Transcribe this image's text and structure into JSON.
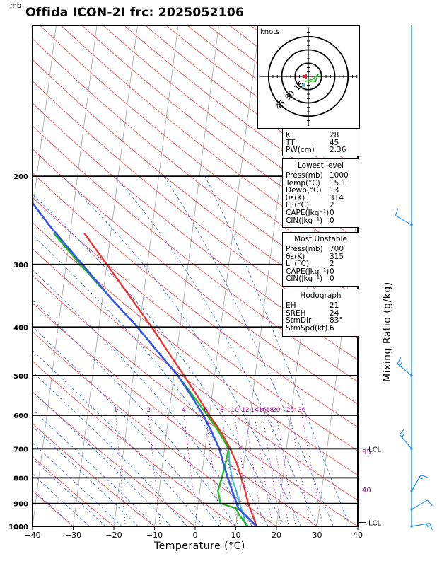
{
  "title": "Offida ICON-2I frc: 2025052106",
  "pressure_unit": "mb",
  "chart_data": {
    "type": "skew-t",
    "xlabel": "Temperature (°C)",
    "ylabel_right": "Mixing Ratio (g/kg)",
    "x_range": [
      -40,
      40
    ],
    "x_ticks": [
      "−40",
      "−30",
      "−20",
      "−10",
      "0",
      "10",
      "20",
      "30",
      "40"
    ],
    "pressure_range": [
      100,
      1000
    ],
    "pressure_ticks": [
      "200",
      "300",
      "400",
      "500",
      "600",
      "700",
      "800",
      "900",
      "1000"
    ],
    "mixing_ratio_labels": [
      "1",
      "2",
      "4",
      "6",
      "8",
      "10",
      "12",
      "14",
      "16",
      "18",
      "20",
      "25",
      "30"
    ],
    "side_labels": [
      "35",
      "40"
    ],
    "lcl_label": "LCL",
    "temperature": [
      {
        "p": 1000,
        "t": 15.1
      },
      {
        "p": 950,
        "t": 13.8
      },
      {
        "p": 900,
        "t": 12.3
      },
      {
        "p": 850,
        "t": 11.2
      },
      {
        "p": 800,
        "t": 9.8
      },
      {
        "p": 750,
        "t": 8.3
      },
      {
        "p": 700,
        "t": 6.2
      },
      {
        "p": 650,
        "t": 3.5
      },
      {
        "p": 600,
        "t": 0.0
      },
      {
        "p": 550,
        "t": -3.5
      },
      {
        "p": 500,
        "t": -7.5
      },
      {
        "p": 450,
        "t": -12.0
      },
      {
        "p": 400,
        "t": -17.0
      },
      {
        "p": 350,
        "t": -23.0
      },
      {
        "p": 300,
        "t": -30.0
      },
      {
        "p": 260,
        "t": -36.5
      }
    ],
    "dewpoint": [
      {
        "p": 1000,
        "t": 13.0
      },
      {
        "p": 950,
        "t": 10.5
      },
      {
        "p": 920,
        "t": 9.5
      },
      {
        "p": 900,
        "t": 5.5
      },
      {
        "p": 850,
        "t": 4.5
      },
      {
        "p": 800,
        "t": 5.0
      },
      {
        "p": 750,
        "t": 5.5
      },
      {
        "p": 700,
        "t": 5.8
      },
      {
        "p": 650,
        "t": 3.0
      },
      {
        "p": 600,
        "t": -0.5
      },
      {
        "p": 550,
        "t": -4.5
      },
      {
        "p": 500,
        "t": -9.0
      },
      {
        "p": 450,
        "t": -14.5
      },
      {
        "p": 400,
        "t": -20.5
      },
      {
        "p": 350,
        "t": -28.0
      },
      {
        "p": 300,
        "t": -36.5
      },
      {
        "p": 260,
        "t": -44.0
      }
    ],
    "parcel": [
      {
        "p": 1000,
        "t": 15.1
      },
      {
        "p": 950,
        "t": 12.0
      },
      {
        "p": 920,
        "t": 10.0
      },
      {
        "p": 900,
        "t": 9.5
      },
      {
        "p": 850,
        "t": 8.0
      },
      {
        "p": 800,
        "t": 6.5
      },
      {
        "p": 750,
        "t": 5.0
      },
      {
        "p": 700,
        "t": 3.5
      },
      {
        "p": 650,
        "t": 1.2
      },
      {
        "p": 600,
        "t": -1.5
      },
      {
        "p": 550,
        "t": -5.0
      },
      {
        "p": 500,
        "t": -9.0
      },
      {
        "p": 450,
        "t": -14.5
      },
      {
        "p": 400,
        "t": -20.5
      },
      {
        "p": 350,
        "t": -28.0
      },
      {
        "p": 300,
        "t": -36.0
      },
      {
        "p": 250,
        "t": -45.5
      },
      {
        "p": 200,
        "t": -56.0
      },
      {
        "p": 150,
        "t": -69.0
      },
      {
        "p": 110,
        "t": -81.0
      }
    ],
    "hodograph": {
      "unit": "knots",
      "ring_labels": [
        "15",
        "30",
        "45"
      ],
      "trace": [
        {
          "u": 0,
          "v": -8
        },
        {
          "u": 4,
          "v": -5
        },
        {
          "u": 8,
          "v": -6
        },
        {
          "u": 11,
          "v": 2
        },
        {
          "u": 5,
          "v": -3
        },
        {
          "u": -4,
          "v": -6
        }
      ],
      "storm_motion": {
        "u": -4,
        "v": 0
      }
    },
    "wind_barbs": [
      {
        "p": 250,
        "dir": 300,
        "speed": 10
      },
      {
        "p": 500,
        "dir": 310,
        "speed": 15
      },
      {
        "p": 700,
        "dir": 320,
        "speed": 15
      },
      {
        "p": 850,
        "dir": 30,
        "speed": 15
      },
      {
        "p": 925,
        "dir": 60,
        "speed": 10
      },
      {
        "p": 1000,
        "dir": 80,
        "speed": 15
      }
    ]
  },
  "indices": {
    "k": {
      "label": "K",
      "value": "28"
    },
    "tt": {
      "label": "TT",
      "value": "45"
    },
    "pw": {
      "label": "PW(cm)",
      "value": "2.36"
    }
  },
  "lowest": {
    "header": "Lowest level",
    "rows": [
      {
        "label": "Press(mb)",
        "value": "1000"
      },
      {
        "label": "Temp(°C)",
        "value": "15.1"
      },
      {
        "label": "Dewp(°C)",
        "value": "13"
      },
      {
        "label": "θε(K)",
        "value": "314"
      },
      {
        "label": "LI (°C)",
        "value": "2"
      },
      {
        "label": "CAPE(Jkg⁻¹)",
        "value": "0"
      },
      {
        "label": "CIN(Jkg⁻¹)",
        "value": "0"
      }
    ]
  },
  "unstable": {
    "header": "Most Unstable",
    "rows": [
      {
        "label": "Press(mb)",
        "value": "700"
      },
      {
        "label": "θε(K)",
        "value": "315"
      },
      {
        "label": "LI (°C)",
        "value": "2"
      },
      {
        "label": "CAPE(Jkg⁻¹)",
        "value": "0"
      },
      {
        "label": "CIN(Jkg⁻¹)",
        "value": "0"
      }
    ]
  },
  "hodo_params": {
    "header": "Hodograph",
    "rows": [
      {
        "label": "EH",
        "value": "21"
      },
      {
        "label": "SREH",
        "value": "24"
      },
      {
        "label": "StmDir",
        "value": "83°"
      },
      {
        "label": "StmSpd(kt)",
        "value": "6"
      }
    ]
  },
  "colors": {
    "temp": "#ee3333",
    "dew": "#22bb22",
    "parcel": "#3355ee",
    "dry_adiabat": "#ee4444",
    "moist_adiabat": "#3366ee",
    "mixing": "#aa00aa",
    "barb": "#1e90ff"
  }
}
